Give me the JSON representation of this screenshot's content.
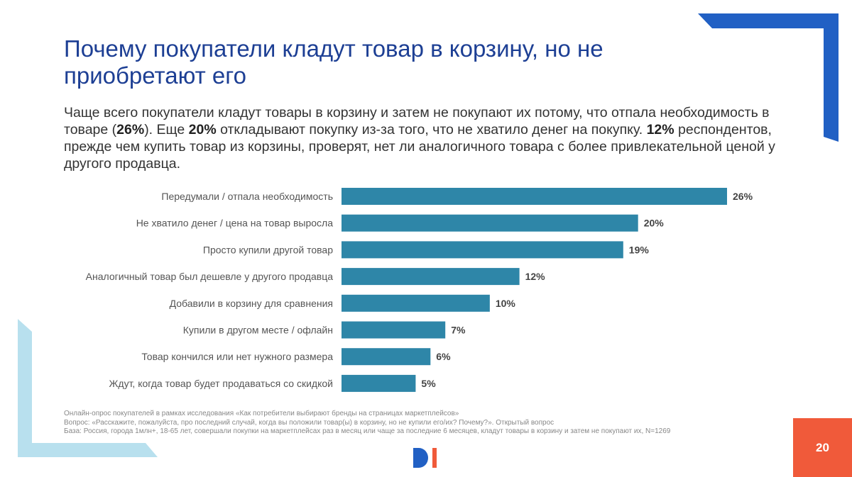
{
  "title": "Почему покупатели кладут товар в корзину, но не приобретают его",
  "subtitle": {
    "p1": "Чаще всего покупатели кладут товары в корзину и затем не покупают их потому, что отпала необходимость в товаре (",
    "b1": "26%",
    "p2": "). Еще ",
    "b2": "20%",
    "p3": " откладывают покупку из-за того, что не хватило денег на покупку. ",
    "b3": "12%",
    "p4": " респондентов, прежде чем купить товар из корзины, проверят, нет ли аналогичного товара с более привлекательной ценой у другого продавца."
  },
  "chart_data": {
    "type": "bar",
    "orientation": "horizontal",
    "categories": [
      "Передумали / отпала необходимость",
      "Не хватило денег / цена на товар выросла",
      "Просто купили другой товар",
      "Аналогичный товар был дешевле у другого продавца",
      "Добавили в корзину для сравнения",
      "Купили в другом месте / офлайн",
      "Товар кончился или нет нужного размера",
      "Ждут, когда товар будет продаваться со скидкой"
    ],
    "values": [
      26,
      20,
      19,
      12,
      10,
      7,
      6,
      5
    ],
    "labels": [
      "26%",
      "20%",
      "19%",
      "12%",
      "10%",
      "7%",
      "6%",
      "5%"
    ],
    "color": "#2e86a8"
  },
  "footnotes": [
    "Онлайн-опрос покупателей в рамках исследования «Как потребители выбирают бренды на страницах маркетплейсов»",
    "Вопрос: «Расскажите, пожалуйста, про последний случай, когда вы положили товар(ы) в корзину, но не купили его/их? Почему?». Открытый вопрос",
    "База: Россия, города 1млн+, 18-65 лет, совершали покупки на маркетплейсах раз в месяц или чаще за последние 6 месяцев, кладут товары в корзину и затем не покупают их, N=1269"
  ],
  "logo": "DI",
  "page_number": "20",
  "colors": {
    "title": "#1d3f94",
    "corner": "#2160c4",
    "bracket": "#b8e0ee",
    "page_box": "#f05a3a"
  }
}
